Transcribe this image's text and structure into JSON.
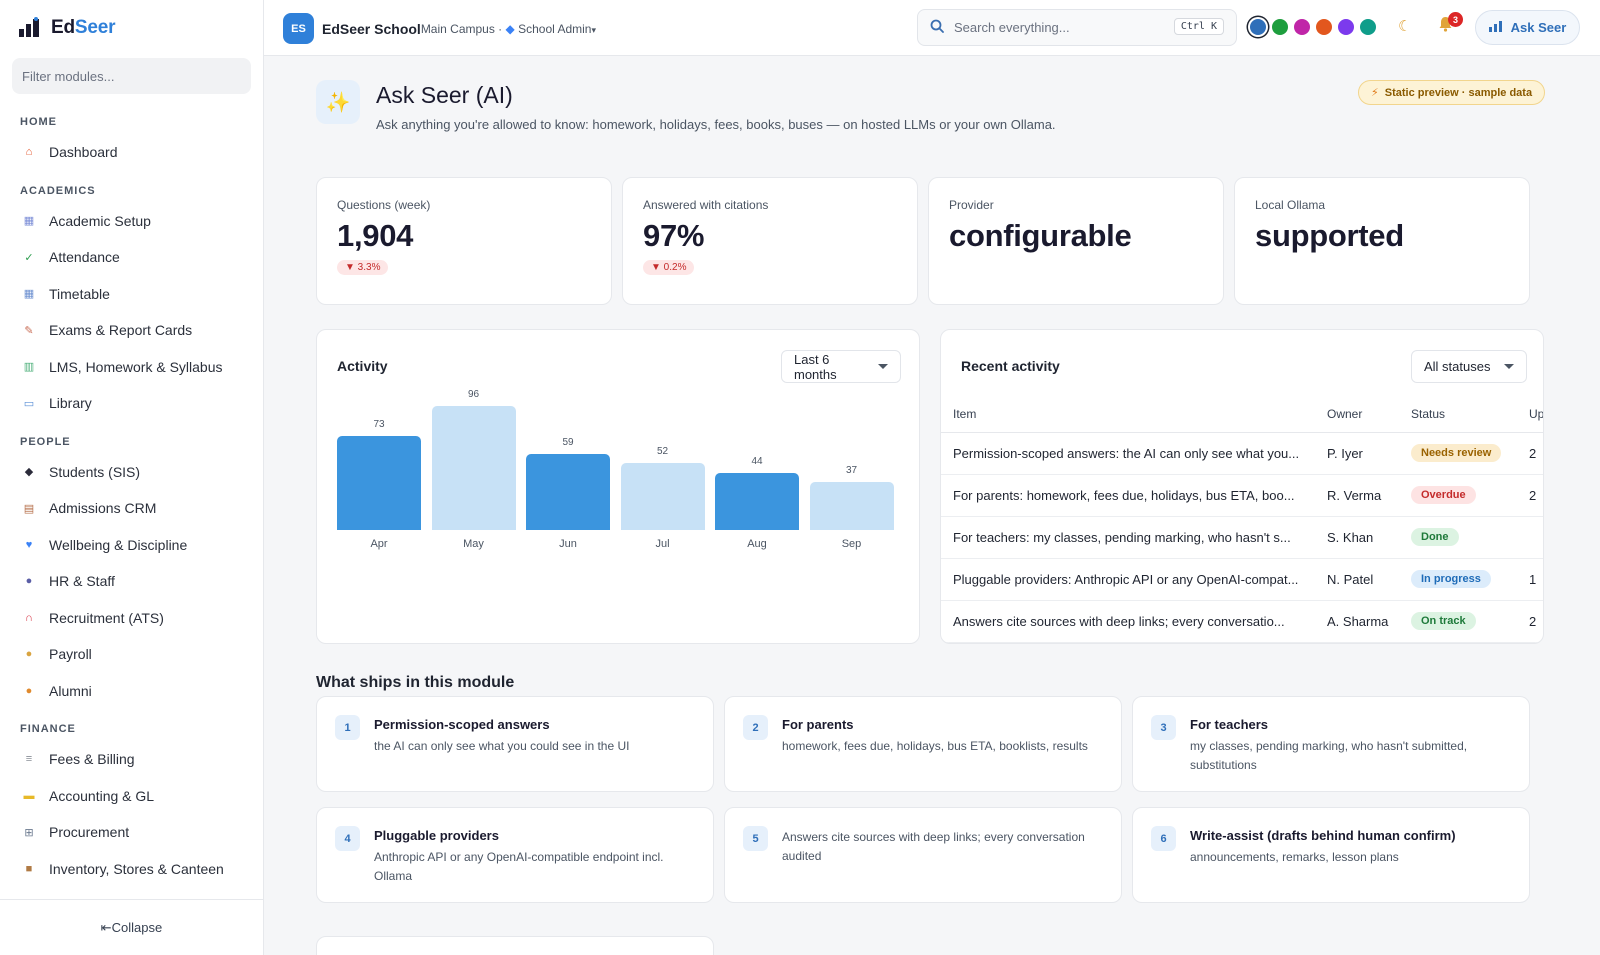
{
  "brand": {
    "name_a": "Ed",
    "name_b": "Seer"
  },
  "sidebar": {
    "filter_placeholder": "Filter modules...",
    "sections": [
      {
        "label": "HOME",
        "items": [
          {
            "label": "Dashboard",
            "icon": "house-icon",
            "color": "#e4572e"
          }
        ]
      },
      {
        "label": "ACADEMICS",
        "items": [
          {
            "label": "Academic Setup",
            "icon": "calendar-icon",
            "color": "#7a8cd6"
          },
          {
            "label": "Attendance",
            "icon": "checkbox-icon",
            "color": "#2e9e4f"
          },
          {
            "label": "Timetable",
            "icon": "calendar-icon",
            "color": "#6b8fd0"
          },
          {
            "label": "Exams & Report Cards",
            "icon": "memo-icon",
            "color": "#c96e57"
          },
          {
            "label": "LMS, Homework & Syllabus",
            "icon": "books-icon",
            "color": "#4caf7a"
          },
          {
            "label": "Library",
            "icon": "book-icon",
            "color": "#5a8fd6"
          }
        ]
      },
      {
        "label": "PEOPLE",
        "items": [
          {
            "label": "Students (SIS)",
            "icon": "graduation-cap-icon",
            "color": "#2b2b3a"
          },
          {
            "label": "Admissions CRM",
            "icon": "clipboard-icon",
            "color": "#b56d47"
          },
          {
            "label": "Wellbeing & Discipline",
            "icon": "heart-icon",
            "color": "#3b82f6"
          },
          {
            "label": "HR & Staff",
            "icon": "people-icon",
            "color": "#5b5ea6"
          },
          {
            "label": "Recruitment (ATS)",
            "icon": "magnet-icon",
            "color": "#d83a4a"
          },
          {
            "label": "Payroll",
            "icon": "money-bag-icon",
            "color": "#d9a441"
          },
          {
            "label": "Alumni",
            "icon": "medal-icon",
            "color": "#e08a2e"
          }
        ]
      },
      {
        "label": "FINANCE",
        "items": [
          {
            "label": "Fees & Billing",
            "icon": "receipt-icon",
            "color": "#8a8f98"
          },
          {
            "label": "Accounting & GL",
            "icon": "ledger-icon",
            "color": "#e7b928"
          },
          {
            "label": "Procurement",
            "icon": "cart-icon",
            "color": "#6b7a8f"
          },
          {
            "label": "Inventory, Stores & Canteen",
            "icon": "package-icon",
            "color": "#b07a44"
          }
        ]
      }
    ],
    "collapse_label": "⇤Collapse"
  },
  "topbar": {
    "school_badge": "ES",
    "school_name": "EdSeer School",
    "context": "Main Campus · ",
    "role": "School Admin",
    "role_caret": "▾",
    "search_placeholder": "Search everything...",
    "shortcut": "Ctrl K",
    "theme_colors": [
      "#2f6fb9",
      "#1e9e3e",
      "#c026a8",
      "#e2571e",
      "#7c3aed",
      "#0f9d8a"
    ],
    "notifications_count": "3",
    "ask_label": "Ask Seer"
  },
  "page": {
    "title": "Ask Seer (AI)",
    "subtitle": "Ask anything you're allowed to know: homework, holidays, fees, books, buses — on hosted LLMs or your own Ollama.",
    "preview_badge": "Static preview · sample data"
  },
  "kpis": [
    {
      "label": "Questions (week)",
      "value": "1,904",
      "delta": "▼ 3.3%"
    },
    {
      "label": "Answered with citations",
      "value": "97%",
      "delta": "▼ 0.2%"
    },
    {
      "label": "Provider",
      "value": "configurable",
      "delta": null
    },
    {
      "label": "Local Ollama",
      "value": "supported",
      "delta": null
    }
  ],
  "activity": {
    "title": "Activity",
    "range": "Last 6 months"
  },
  "chart_data": {
    "type": "bar",
    "categories": [
      "Apr",
      "May",
      "Jun",
      "Jul",
      "Aug",
      "Sep"
    ],
    "values": [
      73,
      96,
      59,
      52,
      44,
      37
    ],
    "colors": [
      "#3b95de",
      "#c7e1f6",
      "#3b95de",
      "#c7e1f6",
      "#3b95de",
      "#c7e1f6"
    ],
    "title": "Activity",
    "xlabel": "",
    "ylabel": "",
    "ylim": [
      0,
      96
    ]
  },
  "recent": {
    "title": "Recent activity",
    "filter": "All statuses",
    "columns": [
      "Item",
      "Owner",
      "Status",
      "Up"
    ],
    "rows": [
      {
        "item": "Permission-scoped answers: the AI can only see what you...",
        "owner": "P. Iyer",
        "status": "Needs review",
        "up": "2",
        "bg": "#fbeccd",
        "fg": "#9a6200"
      },
      {
        "item": "For parents: homework, fees due, holidays, bus ETA, boo...",
        "owner": "R. Verma",
        "status": "Overdue",
        "up": "2",
        "bg": "#fde3e3",
        "fg": "#c42b2b"
      },
      {
        "item": "For teachers: my classes, pending marking, who hasn't s...",
        "owner": "S. Khan",
        "status": "Done",
        "up": "",
        "bg": "#dcf3e2",
        "fg": "#1e7a3a"
      },
      {
        "item": "Pluggable providers: Anthropic API or any OpenAI-compat...",
        "owner": "N. Patel",
        "status": "In progress",
        "up": "1",
        "bg": "#dcecfb",
        "fg": "#1f6cb8"
      },
      {
        "item": "Answers cite sources with deep links; every conversatio...",
        "owner": "A. Sharma",
        "status": "On track",
        "up": "2",
        "bg": "#dcf3e2",
        "fg": "#1e7a3a"
      }
    ]
  },
  "features": {
    "title": "What ships in this module",
    "items": [
      {
        "num": "1",
        "title": "Permission-scoped answers",
        "desc": "the AI can only see what you could see in the UI"
      },
      {
        "num": "2",
        "title": "For parents",
        "desc": "homework, fees due, holidays, bus ETA, booklists, results"
      },
      {
        "num": "3",
        "title": "For teachers",
        "desc": "my classes, pending marking, who hasn't submitted, substitutions"
      },
      {
        "num": "4",
        "title": "Pluggable providers",
        "desc": "Anthropic API or any OpenAI-compatible endpoint incl. Ollama"
      },
      {
        "num": "5",
        "title": "",
        "desc": "Answers cite sources with deep links; every conversation audited"
      },
      {
        "num": "6",
        "title": "Write-assist (drafts behind human confirm)",
        "desc": "announcements, remarks, lesson plans"
      }
    ]
  }
}
